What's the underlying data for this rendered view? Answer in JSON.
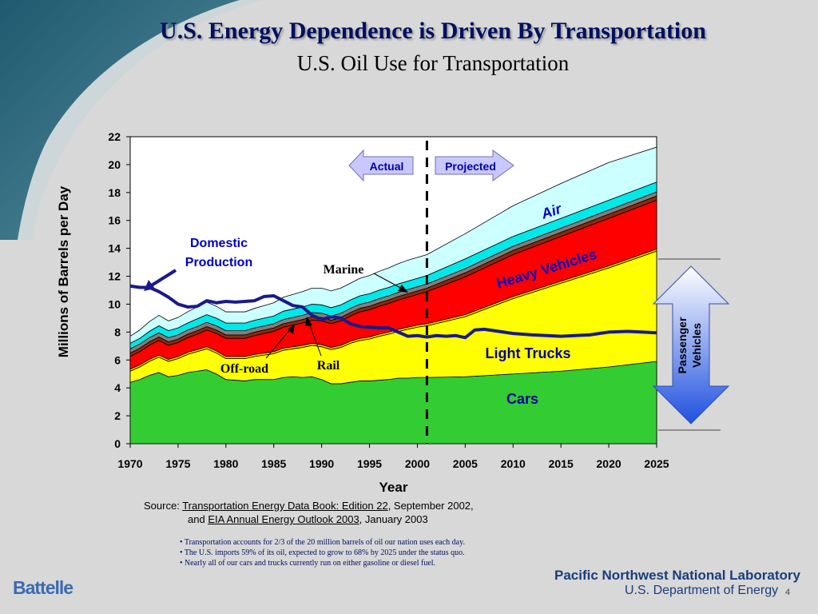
{
  "slide": {
    "title": "U.S. Energy Dependence is Driven By Transportation",
    "subtitle": "U.S. Oil Use for Transportation",
    "page_number": "4"
  },
  "chart_data": {
    "type": "area",
    "ylabel": "Millions of Barrels per Day",
    "xlabel": "Year",
    "ylim": [
      0,
      22
    ],
    "xlim": [
      1970,
      2025
    ],
    "yticks": [
      "0",
      "2",
      "4",
      "6",
      "8",
      "10",
      "12",
      "14",
      "16",
      "18",
      "20",
      "22"
    ],
    "xticks": [
      "1970",
      "1975",
      "1980",
      "1985",
      "1990",
      "1995",
      "2000",
      "2005",
      "2010",
      "2015",
      "2020",
      "2025"
    ],
    "projection_start": 2001,
    "x": [
      1970,
      1971,
      1972,
      1973,
      1974,
      1975,
      1976,
      1977,
      1978,
      1979,
      1980,
      1981,
      1982,
      1983,
      1984,
      1985,
      1986,
      1987,
      1988,
      1989,
      1990,
      1991,
      1992,
      1993,
      1994,
      1995,
      1996,
      1997,
      1998,
      1999,
      2000,
      2001,
      2005,
      2010,
      2015,
      2020,
      2025
    ],
    "series": [
      {
        "name": "Cars",
        "color": "#33cc33",
        "values": [
          4.4,
          4.6,
          4.9,
          5.1,
          4.8,
          4.9,
          5.1,
          5.2,
          5.3,
          5.0,
          4.6,
          4.55,
          4.5,
          4.6,
          4.6,
          4.6,
          4.75,
          4.8,
          4.75,
          4.8,
          4.6,
          4.3,
          4.3,
          4.4,
          4.5,
          4.5,
          4.55,
          4.6,
          4.7,
          4.7,
          4.75,
          4.75,
          4.8,
          5.0,
          5.2,
          5.5,
          5.9
        ]
      },
      {
        "name": "Light Trucks",
        "color": "#ffff00",
        "values": [
          0.8,
          0.9,
          1.0,
          1.1,
          1.1,
          1.2,
          1.3,
          1.4,
          1.5,
          1.5,
          1.5,
          1.55,
          1.6,
          1.65,
          1.75,
          1.85,
          1.95,
          2.0,
          2.15,
          2.25,
          2.35,
          2.45,
          2.6,
          2.8,
          2.9,
          3.0,
          3.15,
          3.25,
          3.35,
          3.5,
          3.6,
          3.7,
          4.3,
          5.4,
          6.3,
          7.1,
          7.9
        ]
      },
      {
        "name": "Off-road",
        "color": "#ffd000",
        "values": [
          0.15,
          0.15,
          0.15,
          0.15,
          0.15,
          0.15,
          0.15,
          0.15,
          0.15,
          0.15,
          0.15,
          0.15,
          0.15,
          0.15,
          0.15,
          0.15,
          0.15,
          0.15,
          0.15,
          0.15,
          0.15,
          0.15,
          0.15,
          0.15,
          0.15,
          0.15,
          0.15,
          0.15,
          0.15,
          0.15,
          0.15,
          0.15,
          0.15,
          0.15,
          0.15,
          0.15,
          0.15
        ]
      },
      {
        "name": "Heavy Vehicles",
        "color": "#ff0000",
        "values": [
          0.9,
          0.95,
          1.0,
          1.05,
          1.0,
          1.0,
          1.05,
          1.1,
          1.2,
          1.25,
          1.3,
          1.3,
          1.3,
          1.35,
          1.4,
          1.45,
          1.5,
          1.55,
          1.6,
          1.65,
          1.7,
          1.7,
          1.75,
          1.8,
          1.9,
          1.95,
          2.0,
          2.05,
          2.1,
          2.15,
          2.2,
          2.3,
          2.7,
          3.0,
          3.2,
          3.4,
          3.5
        ]
      },
      {
        "name": "Rail",
        "color": "#8b2a0a",
        "values": [
          0.25,
          0.25,
          0.25,
          0.25,
          0.25,
          0.25,
          0.25,
          0.25,
          0.25,
          0.25,
          0.25,
          0.25,
          0.25,
          0.25,
          0.25,
          0.25,
          0.25,
          0.25,
          0.25,
          0.25,
          0.25,
          0.25,
          0.25,
          0.25,
          0.25,
          0.25,
          0.25,
          0.25,
          0.25,
          0.25,
          0.25,
          0.25,
          0.3,
          0.3,
          0.3,
          0.3,
          0.3
        ]
      },
      {
        "name": "Marine",
        "color": "#808080",
        "values": [
          0.3,
          0.3,
          0.3,
          0.3,
          0.3,
          0.3,
          0.3,
          0.3,
          0.3,
          0.3,
          0.3,
          0.3,
          0.3,
          0.3,
          0.3,
          0.3,
          0.3,
          0.3,
          0.3,
          0.3,
          0.3,
          0.3,
          0.3,
          0.3,
          0.3,
          0.3,
          0.3,
          0.3,
          0.3,
          0.3,
          0.3,
          0.3,
          0.3,
          0.3,
          0.3,
          0.3,
          0.3
        ]
      },
      {
        "name": "",
        "color": "#00e8e8",
        "values": [
          0.4,
          0.4,
          0.45,
          0.5,
          0.5,
          0.5,
          0.5,
          0.55,
          0.55,
          0.55,
          0.55,
          0.55,
          0.55,
          0.55,
          0.55,
          0.55,
          0.6,
          0.6,
          0.6,
          0.6,
          0.6,
          0.6,
          0.6,
          0.6,
          0.6,
          0.6,
          0.6,
          0.6,
          0.6,
          0.6,
          0.6,
          0.6,
          0.7,
          0.7,
          0.7,
          0.7,
          0.7
        ]
      },
      {
        "name": "Air",
        "color": "#ccffff",
        "values": [
          0.5,
          0.6,
          0.7,
          0.75,
          0.7,
          0.75,
          0.8,
          0.85,
          0.9,
          0.85,
          0.8,
          0.8,
          0.8,
          0.85,
          0.9,
          0.95,
          1.0,
          1.05,
          1.1,
          1.15,
          1.2,
          1.2,
          1.2,
          1.2,
          1.25,
          1.3,
          1.35,
          1.4,
          1.45,
          1.5,
          1.5,
          1.5,
          1.8,
          2.2,
          2.5,
          2.7,
          2.5
        ]
      }
    ],
    "domestic_production": {
      "name": "Domestic Production",
      "color": "#1a1a8a",
      "x": [
        1970,
        1971,
        1972,
        1973,
        1974,
        1975,
        1976,
        1977,
        1978,
        1979,
        1980,
        1981,
        1982,
        1983,
        1984,
        1985,
        1986,
        1987,
        1988,
        1989,
        1990,
        1991,
        1992,
        1993,
        1994,
        1995,
        1996,
        1997,
        1998,
        1999,
        2000,
        2001,
        2002,
        2003,
        2004,
        2005,
        2006,
        2007,
        2008,
        2010,
        2012,
        2015,
        2018,
        2020,
        2022,
        2025
      ],
      "values": [
        11.3,
        11.2,
        11.2,
        10.9,
        10.5,
        10.0,
        9.8,
        9.85,
        10.25,
        10.1,
        10.2,
        10.15,
        10.2,
        10.25,
        10.55,
        10.6,
        10.25,
        9.9,
        9.8,
        9.2,
        8.9,
        9.1,
        9.0,
        8.6,
        8.4,
        8.35,
        8.3,
        8.3,
        8.0,
        7.7,
        7.75,
        7.65,
        7.75,
        7.7,
        7.75,
        7.6,
        8.15,
        8.2,
        8.1,
        7.9,
        7.8,
        7.7,
        7.8,
        8.0,
        8.05,
        7.95
      ]
    },
    "labels": {
      "actual": "Actual",
      "projected": "Projected",
      "air": "Air",
      "heavy_vehicles": "Heavy Vehicles",
      "light_trucks": "Light Trucks",
      "cars": "Cars",
      "domestic_production_line1": "Domestic",
      "domestic_production_line2": "Production",
      "marine": "Marine",
      "off_road": "Off-road",
      "rail": "Rail",
      "passenger_line1": "Passenger",
      "passenger_line2": "Vehicles"
    },
    "colors": {
      "arrow_fill": "#c8c8ff",
      "arrow_text": "#0000a0",
      "label_blue": "#0000c0",
      "passenger_arrow_top": "#ffffff",
      "passenger_arrow_bottom": "#2050e0"
    }
  },
  "source": {
    "prefix": "Source: ",
    "link1": "Transportation Energy Data Book: Edition 22",
    "mid1": ", September 2002,",
    "and": "and ",
    "link2": "EIA Annual Energy Outlook 2003",
    "mid2": ", January 2003"
  },
  "bullets": [
    "• Transportation accounts for 2/3 of the 20 million barrels of oil our nation uses each day.",
    "• The U.S. imports 59% of its oil, expected to grow to 68% by 2025 under the status quo.",
    "• Nearly all of our cars and trucks currently run on either gasoline or diesel fuel."
  ],
  "footer": {
    "battelle": "Battelle",
    "pnnl": "Pacific Northwest National Laboratory",
    "doe": "U.S. Department of Energy"
  }
}
